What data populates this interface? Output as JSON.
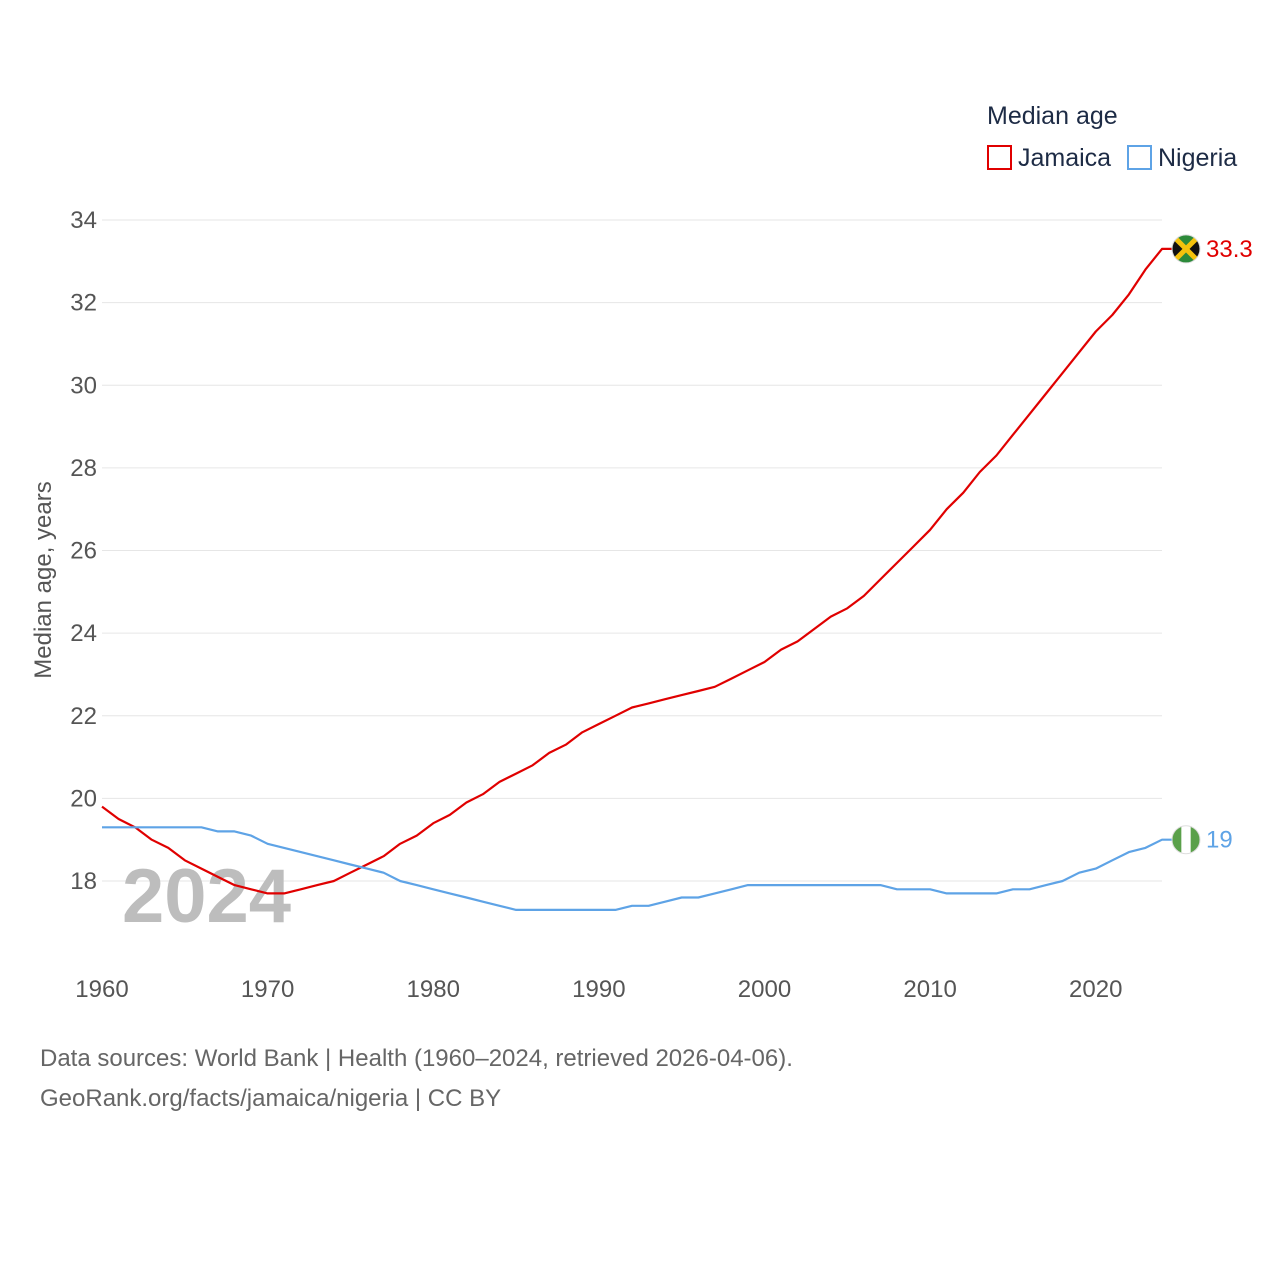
{
  "chart_data": {
    "type": "line",
    "title": "",
    "legend_title": "Median age",
    "xlabel": "",
    "ylabel": "Median age, years",
    "xlim": [
      1960,
      2024
    ],
    "ylim": [
      16.6,
      34.2
    ],
    "y_ticks": [
      18,
      20,
      22,
      24,
      26,
      28,
      30,
      32,
      34
    ],
    "x_ticks": [
      1960,
      1970,
      1980,
      1990,
      2000,
      2010,
      2020
    ],
    "grid": true,
    "legend_position": "top-right",
    "watermark_year": "2024",
    "x": [
      1960,
      1961,
      1962,
      1963,
      1964,
      1965,
      1966,
      1967,
      1968,
      1969,
      1970,
      1971,
      1972,
      1973,
      1974,
      1975,
      1976,
      1977,
      1978,
      1979,
      1980,
      1981,
      1982,
      1983,
      1984,
      1985,
      1986,
      1987,
      1988,
      1989,
      1990,
      1991,
      1992,
      1993,
      1994,
      1995,
      1996,
      1997,
      1998,
      1999,
      2000,
      2001,
      2002,
      2003,
      2004,
      2005,
      2006,
      2007,
      2008,
      2009,
      2010,
      2011,
      2012,
      2013,
      2014,
      2015,
      2016,
      2017,
      2018,
      2019,
      2020,
      2021,
      2022,
      2023,
      2024
    ],
    "series": [
      {
        "name": "Jamaica",
        "color": "#e00000",
        "end_label": "33.3",
        "flag_icon": "jamaica-flag-icon",
        "values": [
          19.8,
          19.5,
          19.3,
          19.0,
          18.8,
          18.5,
          18.3,
          18.1,
          17.9,
          17.8,
          17.7,
          17.7,
          17.8,
          17.9,
          18.0,
          18.2,
          18.4,
          18.6,
          18.9,
          19.1,
          19.4,
          19.6,
          19.9,
          20.1,
          20.4,
          20.6,
          20.8,
          21.1,
          21.3,
          21.6,
          21.8,
          22.0,
          22.2,
          22.3,
          22.4,
          22.5,
          22.6,
          22.7,
          22.9,
          23.1,
          23.3,
          23.6,
          23.8,
          24.1,
          24.4,
          24.6,
          24.9,
          25.3,
          25.7,
          26.1,
          26.5,
          27.0,
          27.4,
          27.9,
          28.3,
          28.8,
          29.3,
          29.8,
          30.3,
          30.8,
          31.3,
          31.7,
          32.2,
          32.8,
          33.3
        ]
      },
      {
        "name": "Nigeria",
        "color": "#5ea3e6",
        "end_label": "19",
        "flag_icon": "nigeria-flag-icon",
        "values": [
          19.3,
          19.3,
          19.3,
          19.3,
          19.3,
          19.3,
          19.3,
          19.2,
          19.2,
          19.1,
          18.9,
          18.8,
          18.7,
          18.6,
          18.5,
          18.4,
          18.3,
          18.2,
          18.0,
          17.9,
          17.8,
          17.7,
          17.6,
          17.5,
          17.4,
          17.3,
          17.3,
          17.3,
          17.3,
          17.3,
          17.3,
          17.3,
          17.4,
          17.4,
          17.5,
          17.6,
          17.6,
          17.7,
          17.8,
          17.9,
          17.9,
          17.9,
          17.9,
          17.9,
          17.9,
          17.9,
          17.9,
          17.9,
          17.8,
          17.8,
          17.8,
          17.7,
          17.7,
          17.7,
          17.7,
          17.8,
          17.8,
          17.9,
          18.0,
          18.2,
          18.3,
          18.5,
          18.7,
          18.8,
          19.0
        ]
      }
    ]
  },
  "footer": {
    "line1": "Data sources: World Bank | Health (1960–2024, retrieved 2026-04-06).",
    "line2": "GeoRank.org/facts/jamaica/nigeria | CC BY"
  }
}
